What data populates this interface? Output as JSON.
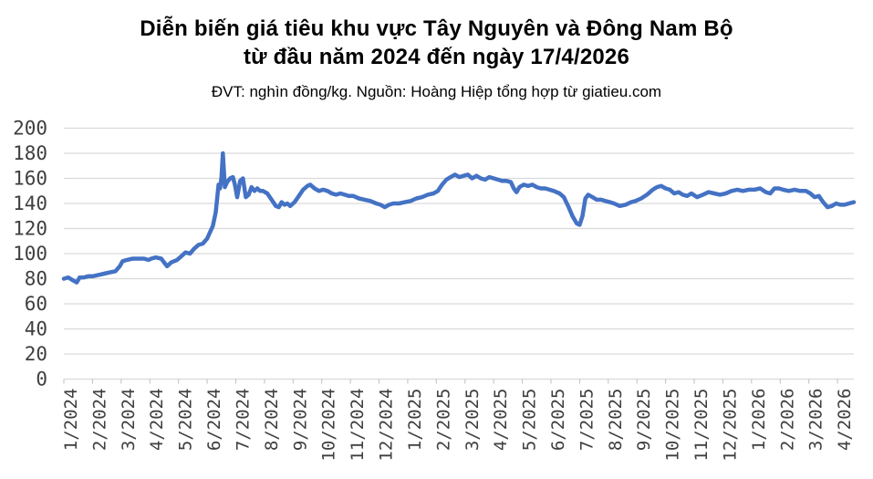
{
  "title": {
    "line1": "Diễn biến giá tiêu khu vực Tây Nguyên và Đông Nam Bộ",
    "line2": "từ đầu năm 2024 đến ngày 17/4/2026"
  },
  "subtitle": "ĐVT: nghìn đồng/kg. Nguồn: Hoàng Hiệp tổng hợp từ giatieu.com",
  "colors": {
    "line": "#4472C4",
    "gridline": "#D9D9D9",
    "axis_tick": "#BFBFBF",
    "tick_label": "#3F3F3F",
    "title_text": "#000000"
  },
  "chart_data": {
    "type": "line",
    "title": "Diễn biến giá tiêu khu vực Tây Nguyên và Đông Nam Bộ từ đầu năm 2024 đến ngày 17/4/2026",
    "unit_note": "ĐVT: nghìn đồng/kg. Nguồn: Hoàng Hiệp tổng hợp từ giatieu.com",
    "xlabel": "",
    "ylabel": "",
    "ylim": [
      0,
      200
    ],
    "y_tick_step": 20,
    "y_tick_labels": [
      "0",
      "20",
      "40",
      "60",
      "80",
      "100",
      "120",
      "140",
      "160",
      "180",
      "200"
    ],
    "grid": true,
    "legend_position": "none",
    "x_axis_labels": [
      "1/2024",
      "2/2024",
      "3/2024",
      "4/2024",
      "5/2024",
      "6/2024",
      "7/2024",
      "8/2024",
      "9/2024",
      "10/2024",
      "11/2024",
      "12/2024",
      "1/2025",
      "2/2025",
      "3/2025",
      "4/2025",
      "5/2025",
      "6/2025",
      "7/2025",
      "8/2025",
      "9/2025",
      "10/2025",
      "11/2025",
      "12/2025",
      "1/2026",
      "2/2026",
      "3/2026",
      "4/2026"
    ],
    "x_span_months": 27.57,
    "points": [
      [
        0.0,
        80
      ],
      [
        0.15,
        81
      ],
      [
        0.3,
        79
      ],
      [
        0.45,
        77
      ],
      [
        0.55,
        81
      ],
      [
        0.7,
        81
      ],
      [
        0.85,
        82
      ],
      [
        1.0,
        82
      ],
      [
        1.2,
        83
      ],
      [
        1.4,
        84
      ],
      [
        1.6,
        85
      ],
      [
        1.8,
        86
      ],
      [
        1.95,
        90
      ],
      [
        2.05,
        94
      ],
      [
        2.2,
        95
      ],
      [
        2.4,
        96
      ],
      [
        2.6,
        96
      ],
      [
        2.8,
        96
      ],
      [
        2.95,
        95
      ],
      [
        3.05,
        96
      ],
      [
        3.2,
        97
      ],
      [
        3.4,
        96
      ],
      [
        3.5,
        93
      ],
      [
        3.6,
        90
      ],
      [
        3.75,
        93
      ],
      [
        3.95,
        95
      ],
      [
        4.1,
        98
      ],
      [
        4.25,
        101
      ],
      [
        4.4,
        100
      ],
      [
        4.55,
        104
      ],
      [
        4.7,
        107
      ],
      [
        4.85,
        108
      ],
      [
        5.0,
        112
      ],
      [
        5.1,
        117
      ],
      [
        5.2,
        122
      ],
      [
        5.3,
        133
      ],
      [
        5.4,
        155
      ],
      [
        5.45,
        152
      ],
      [
        5.5,
        161
      ],
      [
        5.55,
        180
      ],
      [
        5.62,
        153
      ],
      [
        5.7,
        157
      ],
      [
        5.8,
        160
      ],
      [
        5.9,
        161
      ],
      [
        5.97,
        155
      ],
      [
        6.05,
        145
      ],
      [
        6.15,
        158
      ],
      [
        6.25,
        160
      ],
      [
        6.35,
        145
      ],
      [
        6.45,
        147
      ],
      [
        6.55,
        153
      ],
      [
        6.65,
        150
      ],
      [
        6.75,
        152
      ],
      [
        6.85,
        150
      ],
      [
        6.95,
        150
      ],
      [
        7.1,
        148
      ],
      [
        7.25,
        143
      ],
      [
        7.4,
        138
      ],
      [
        7.5,
        137
      ],
      [
        7.6,
        141
      ],
      [
        7.7,
        139
      ],
      [
        7.8,
        140
      ],
      [
        7.9,
        138
      ],
      [
        8.05,
        141
      ],
      [
        8.2,
        146
      ],
      [
        8.35,
        151
      ],
      [
        8.5,
        154
      ],
      [
        8.6,
        155
      ],
      [
        8.75,
        152
      ],
      [
        8.9,
        150
      ],
      [
        9.05,
        151
      ],
      [
        9.2,
        150
      ],
      [
        9.35,
        148
      ],
      [
        9.5,
        147
      ],
      [
        9.65,
        148
      ],
      [
        9.8,
        147
      ],
      [
        9.95,
        146
      ],
      [
        10.1,
        146
      ],
      [
        10.3,
        144
      ],
      [
        10.5,
        143
      ],
      [
        10.7,
        142
      ],
      [
        10.9,
        140
      ],
      [
        11.05,
        139
      ],
      [
        11.2,
        137
      ],
      [
        11.35,
        139
      ],
      [
        11.5,
        140
      ],
      [
        11.7,
        140
      ],
      [
        11.9,
        141
      ],
      [
        12.1,
        142
      ],
      [
        12.3,
        144
      ],
      [
        12.5,
        145
      ],
      [
        12.7,
        147
      ],
      [
        12.9,
        148
      ],
      [
        13.05,
        150
      ],
      [
        13.2,
        155
      ],
      [
        13.35,
        159
      ],
      [
        13.5,
        161
      ],
      [
        13.65,
        163
      ],
      [
        13.8,
        161
      ],
      [
        13.95,
        162
      ],
      [
        14.1,
        163
      ],
      [
        14.25,
        160
      ],
      [
        14.4,
        162
      ],
      [
        14.55,
        160
      ],
      [
        14.7,
        159
      ],
      [
        14.85,
        161
      ],
      [
        15.0,
        160
      ],
      [
        15.15,
        159
      ],
      [
        15.3,
        158
      ],
      [
        15.45,
        158
      ],
      [
        15.6,
        157
      ],
      [
        15.7,
        152
      ],
      [
        15.8,
        149
      ],
      [
        15.9,
        153
      ],
      [
        16.05,
        155
      ],
      [
        16.2,
        154
      ],
      [
        16.35,
        155
      ],
      [
        16.5,
        153
      ],
      [
        16.65,
        152
      ],
      [
        16.8,
        152
      ],
      [
        16.95,
        151
      ],
      [
        17.1,
        150
      ],
      [
        17.3,
        148
      ],
      [
        17.45,
        145
      ],
      [
        17.6,
        138
      ],
      [
        17.75,
        130
      ],
      [
        17.9,
        124
      ],
      [
        18.0,
        123
      ],
      [
        18.1,
        130
      ],
      [
        18.2,
        144
      ],
      [
        18.3,
        147
      ],
      [
        18.45,
        145
      ],
      [
        18.6,
        143
      ],
      [
        18.75,
        143
      ],
      [
        18.9,
        142
      ],
      [
        19.05,
        141
      ],
      [
        19.2,
        140
      ],
      [
        19.4,
        138
      ],
      [
        19.6,
        139
      ],
      [
        19.8,
        141
      ],
      [
        19.95,
        142
      ],
      [
        20.15,
        144
      ],
      [
        20.35,
        147
      ],
      [
        20.55,
        151
      ],
      [
        20.7,
        153
      ],
      [
        20.85,
        154
      ],
      [
        21.0,
        152
      ],
      [
        21.15,
        151
      ],
      [
        21.3,
        148
      ],
      [
        21.45,
        149
      ],
      [
        21.6,
        147
      ],
      [
        21.75,
        146
      ],
      [
        21.9,
        148
      ],
      [
        22.1,
        145
      ],
      [
        22.3,
        147
      ],
      [
        22.5,
        149
      ],
      [
        22.7,
        148
      ],
      [
        22.9,
        147
      ],
      [
        23.1,
        148
      ],
      [
        23.3,
        150
      ],
      [
        23.5,
        151
      ],
      [
        23.7,
        150
      ],
      [
        23.9,
        151
      ],
      [
        24.1,
        151
      ],
      [
        24.3,
        152
      ],
      [
        24.5,
        149
      ],
      [
        24.65,
        148
      ],
      [
        24.8,
        152
      ],
      [
        24.95,
        152
      ],
      [
        25.1,
        151
      ],
      [
        25.3,
        150
      ],
      [
        25.5,
        151
      ],
      [
        25.7,
        150
      ],
      [
        25.9,
        150
      ],
      [
        26.05,
        148
      ],
      [
        26.2,
        145
      ],
      [
        26.35,
        146
      ],
      [
        26.5,
        141
      ],
      [
        26.65,
        137
      ],
      [
        26.8,
        138
      ],
      [
        26.95,
        140
      ],
      [
        27.1,
        139
      ],
      [
        27.25,
        139
      ],
      [
        27.4,
        140
      ],
      [
        27.57,
        141
      ]
    ]
  }
}
